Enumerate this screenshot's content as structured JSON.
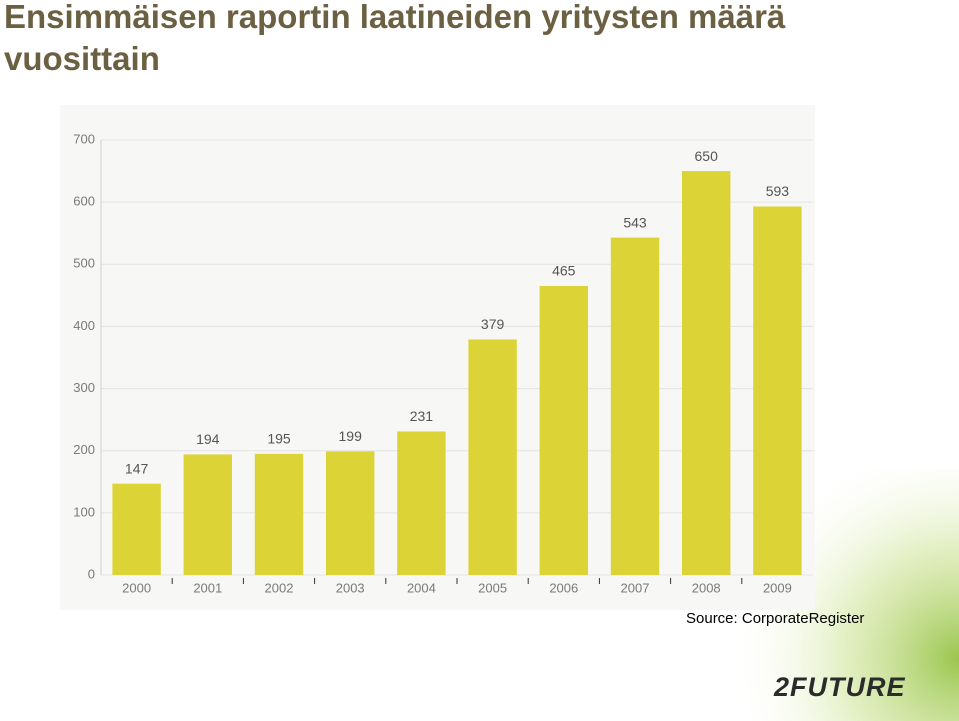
{
  "title": "Ensimmäisen raportin laatineiden yritysten määrä vuosittain",
  "source": "Source: CorporateRegister",
  "logo": "2FUTURE",
  "chart_data": {
    "type": "bar",
    "categories": [
      "2000",
      "2001",
      "2002",
      "2003",
      "2004",
      "2005",
      "2006",
      "2007",
      "2008",
      "2009"
    ],
    "values": [
      147,
      194,
      195,
      199,
      231,
      379,
      465,
      543,
      650,
      593
    ],
    "color": "#dcd437",
    "ylim": [
      0,
      700
    ],
    "yticks": [
      0,
      100,
      200,
      300,
      400,
      500,
      600,
      700
    ],
    "grid": true
  }
}
